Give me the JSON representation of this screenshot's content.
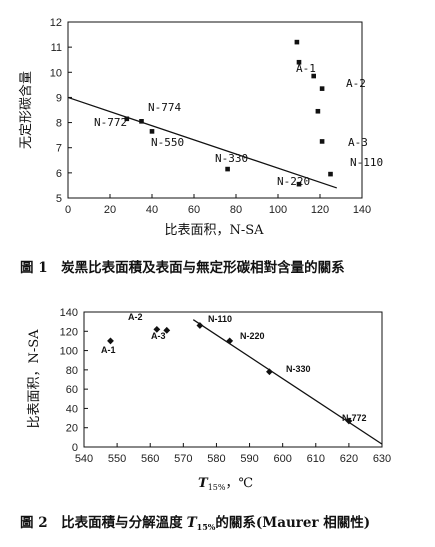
{
  "chart_data": [
    {
      "type": "scatter",
      "caption": "圖 1　炭黑比表面積及表面与無定形碳相對含量的關系",
      "xlabel": "比表面积，N-SA",
      "ylabel": "无定形碳含量",
      "xlim": [
        0,
        140
      ],
      "ylim": [
        5,
        12
      ],
      "xticks": [
        0,
        20,
        40,
        60,
        80,
        100,
        120,
        140
      ],
      "yticks": [
        5,
        6,
        7,
        8,
        9,
        10,
        11,
        12
      ],
      "grid": false,
      "points": [
        {
          "x": 28,
          "y": 8.15,
          "label": "N-772"
        },
        {
          "x": 35,
          "y": 8.05,
          "label": ""
        },
        {
          "x": 40,
          "y": 7.65,
          "label": "N-550"
        },
        {
          "x": 76,
          "y": 6.15,
          "label": "N-330"
        },
        {
          "x": 110,
          "y": 5.55,
          "label": "N-220"
        },
        {
          "x": 125,
          "y": 5.95,
          "label": "N-110"
        },
        {
          "x": 109,
          "y": 11.2,
          "label": ""
        },
        {
          "x": 110,
          "y": 10.4,
          "label": "A-1"
        },
        {
          "x": 117,
          "y": 9.85,
          "label": ""
        },
        {
          "x": 121,
          "y": 9.35,
          "label": "A-2"
        },
        {
          "x": 119,
          "y": 8.45,
          "label": ""
        },
        {
          "x": 121,
          "y": 7.25,
          "label": "A-3"
        }
      ],
      "extra_labels": [
        "N-774"
      ],
      "trend_line": {
        "x": [
          0,
          128
        ],
        "y": [
          9.0,
          5.4
        ]
      }
    },
    {
      "type": "scatter",
      "caption": "圖 2　比表面積与分解溫度",
      "caption_var": "T",
      "caption_var_sub": "15%",
      "caption_tail": "的關系(Maurer 相關性)",
      "xlabel_var": "T",
      "xlabel_sub": "15%",
      "xlabel_unit": "，℃",
      "ylabel": "比表面积，N-SA",
      "xlim": [
        540,
        630
      ],
      "ylim": [
        0,
        140
      ],
      "xticks": [
        540,
        550,
        560,
        570,
        580,
        590,
        600,
        610,
        620,
        630
      ],
      "yticks": [
        0,
        20,
        40,
        60,
        80,
        100,
        120,
        140
      ],
      "grid": false,
      "points": [
        {
          "x": 548,
          "y": 110,
          "label": "A-1"
        },
        {
          "x": 562,
          "y": 122,
          "label": "A-2"
        },
        {
          "x": 565,
          "y": 121,
          "label": "A-3"
        },
        {
          "x": 575,
          "y": 126,
          "label": "N-110"
        },
        {
          "x": 584,
          "y": 110,
          "label": "N-220"
        },
        {
          "x": 596,
          "y": 78,
          "label": "N-330"
        },
        {
          "x": 620,
          "y": 27,
          "label": "N-772"
        }
      ],
      "trend_line": {
        "x": [
          573,
          630
        ],
        "y": [
          132,
          3
        ]
      }
    }
  ]
}
